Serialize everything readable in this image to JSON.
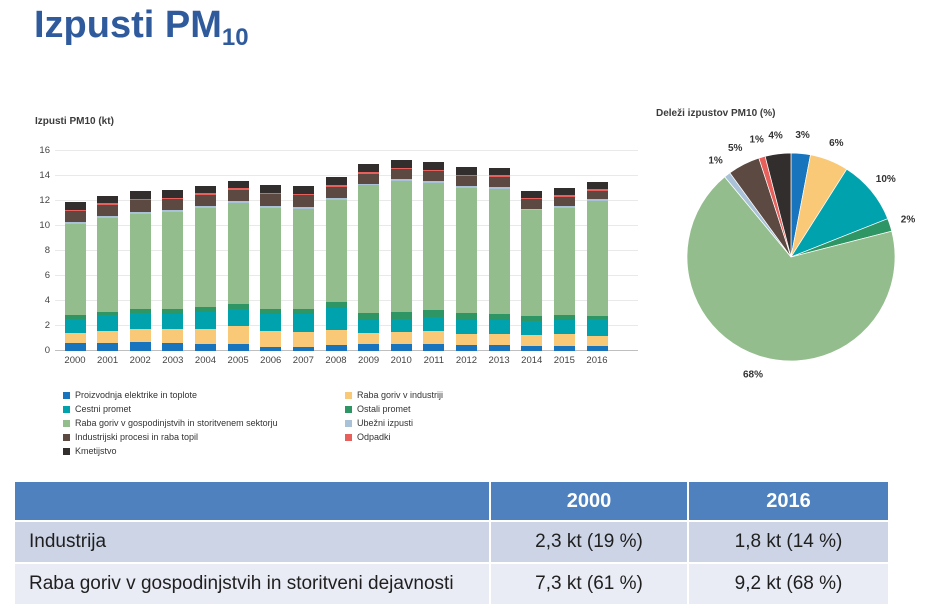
{
  "page_title": {
    "text": "Izpusti PM",
    "subscript": "10"
  },
  "chart_data": [
    {
      "type": "bar",
      "stacked": true,
      "title": "Izpusti PM10 (kt)",
      "xlabel": "",
      "ylabel": "kt",
      "ylim": [
        0,
        16
      ],
      "yticks": [
        0,
        2,
        4,
        6,
        8,
        10,
        12,
        14,
        16
      ],
      "grid": true,
      "legend_position": "bottom",
      "categories": [
        "2000",
        "2001",
        "2002",
        "2003",
        "2004",
        "2005",
        "2006",
        "2007",
        "2008",
        "2009",
        "2010",
        "2011",
        "2012",
        "2013",
        "2014",
        "2015",
        "2016"
      ],
      "series": [
        {
          "name": "Proizvodnja elektrike in toplote",
          "color": "#1874BC",
          "values": [
            0.65,
            0.65,
            0.7,
            0.65,
            0.6,
            0.6,
            0.35,
            0.35,
            0.45,
            0.55,
            0.55,
            0.6,
            0.5,
            0.5,
            0.4,
            0.4,
            0.4
          ]
        },
        {
          "name": "Raba goriv v industriji",
          "color": "#F9C977",
          "values": [
            0.8,
            0.95,
            1.1,
            1.15,
            1.2,
            1.4,
            1.25,
            1.15,
            1.25,
            0.9,
            0.95,
            1.0,
            0.9,
            0.85,
            0.9,
            0.95,
            0.8
          ]
        },
        {
          "name": "Cestni promet",
          "color": "#00A2AD",
          "values": [
            1.1,
            1.25,
            1.25,
            1.2,
            1.35,
            1.35,
            1.35,
            1.5,
            1.75,
            1.0,
            1.05,
            1.1,
            1.1,
            1.15,
            1.1,
            1.1,
            1.35
          ]
        },
        {
          "name": "Ostali promet",
          "color": "#2E9564",
          "values": [
            0.3,
            0.3,
            0.35,
            0.35,
            0.4,
            0.45,
            0.4,
            0.35,
            0.45,
            0.6,
            0.55,
            0.55,
            0.55,
            0.5,
            0.4,
            0.4,
            0.27
          ]
        },
        {
          "name": "Raba goriv v gospodinjstvih in storitvenem sektorju",
          "color": "#93BD8D",
          "values": [
            7.3,
            7.5,
            7.6,
            7.8,
            7.9,
            8.05,
            8.1,
            8.05,
            8.2,
            10.2,
            10.5,
            10.2,
            10.0,
            10.0,
            8.45,
            8.6,
            9.2
          ]
        },
        {
          "name": "Ubežni izpusti",
          "color": "#A9C2D8",
          "values": [
            0.15,
            0.15,
            0.15,
            0.15,
            0.15,
            0.15,
            0.15,
            0.15,
            0.15,
            0.15,
            0.15,
            0.15,
            0.15,
            0.15,
            0.15,
            0.15,
            0.13
          ]
        },
        {
          "name": "Industrijski procesi in raba topil",
          "color": "#5C4A42",
          "values": [
            0.9,
            0.9,
            0.9,
            0.85,
            0.9,
            0.9,
            0.95,
            0.9,
            0.9,
            0.8,
            0.8,
            0.8,
            0.8,
            0.8,
            0.75,
            0.75,
            0.67
          ]
        },
        {
          "name": "Odpadki",
          "color": "#E8605C",
          "values": [
            0.12,
            0.12,
            0.12,
            0.12,
            0.12,
            0.12,
            0.12,
            0.12,
            0.12,
            0.12,
            0.12,
            0.12,
            0.12,
            0.12,
            0.12,
            0.12,
            0.13
          ]
        },
        {
          "name": "Kmetijstvo",
          "color": "#322E2E",
          "values": [
            0.58,
            0.58,
            0.6,
            0.58,
            0.58,
            0.62,
            0.6,
            0.62,
            0.62,
            0.62,
            0.62,
            0.62,
            0.6,
            0.6,
            0.55,
            0.55,
            0.54
          ]
        }
      ],
      "legend_columns": [
        [
          "Proizvodnja elektrike in toplote",
          "Cestni promet",
          "Raba goriv v gospodinjstvih in storitvenem sektorju",
          "Industrijski procesi in raba topil",
          "Kmetijstvo"
        ],
        [
          "Raba goriv v industriji",
          "Ostali promet",
          "Ubežni izpusti",
          "Odpadki"
        ]
      ]
    },
    {
      "type": "pie",
      "title": "Deleži izpustov PM10 (%)",
      "direction": "clockwise",
      "start_angle_deg": 0,
      "labels": [
        "Proizvodnja elektrike in toplote",
        "Raba goriv v industriji",
        "Cestni promet",
        "Ostali promet",
        "Raba goriv v gospodinjstvih in storitvenem sektorju",
        "Ubežni izpusti",
        "Industrijski procesi in raba topil",
        "Odpadki",
        "Kmetijstvo"
      ],
      "values": [
        3,
        6,
        10,
        2,
        68,
        1,
        5,
        1,
        4
      ],
      "labels_shown": [
        "3%",
        "6%",
        "10%",
        "2%",
        "68%",
        "1%",
        "5%",
        "1%",
        "4%"
      ],
      "colors": [
        "#1874BC",
        "#F9C977",
        "#00A2AD",
        "#2E9564",
        "#93BD8D",
        "#A9C2D8",
        "#5C4A42",
        "#E8605C",
        "#322E2E"
      ]
    }
  ],
  "table": {
    "columns": [
      "",
      "2000",
      "2016"
    ],
    "rows": [
      {
        "label": "Industrija",
        "values": [
          "2,3 kt (19 %)",
          "1,8 kt (14 %)"
        ]
      },
      {
        "label": "Raba goriv v gospodinjstvih in storitveni dejavnosti",
        "values": [
          "7,3 kt (61 %)",
          "9,2 kt (68 %)"
        ]
      }
    ],
    "header_bg": "#4E81BD",
    "row_bg": [
      "#CCD4E6",
      "#E9ECF5"
    ]
  }
}
